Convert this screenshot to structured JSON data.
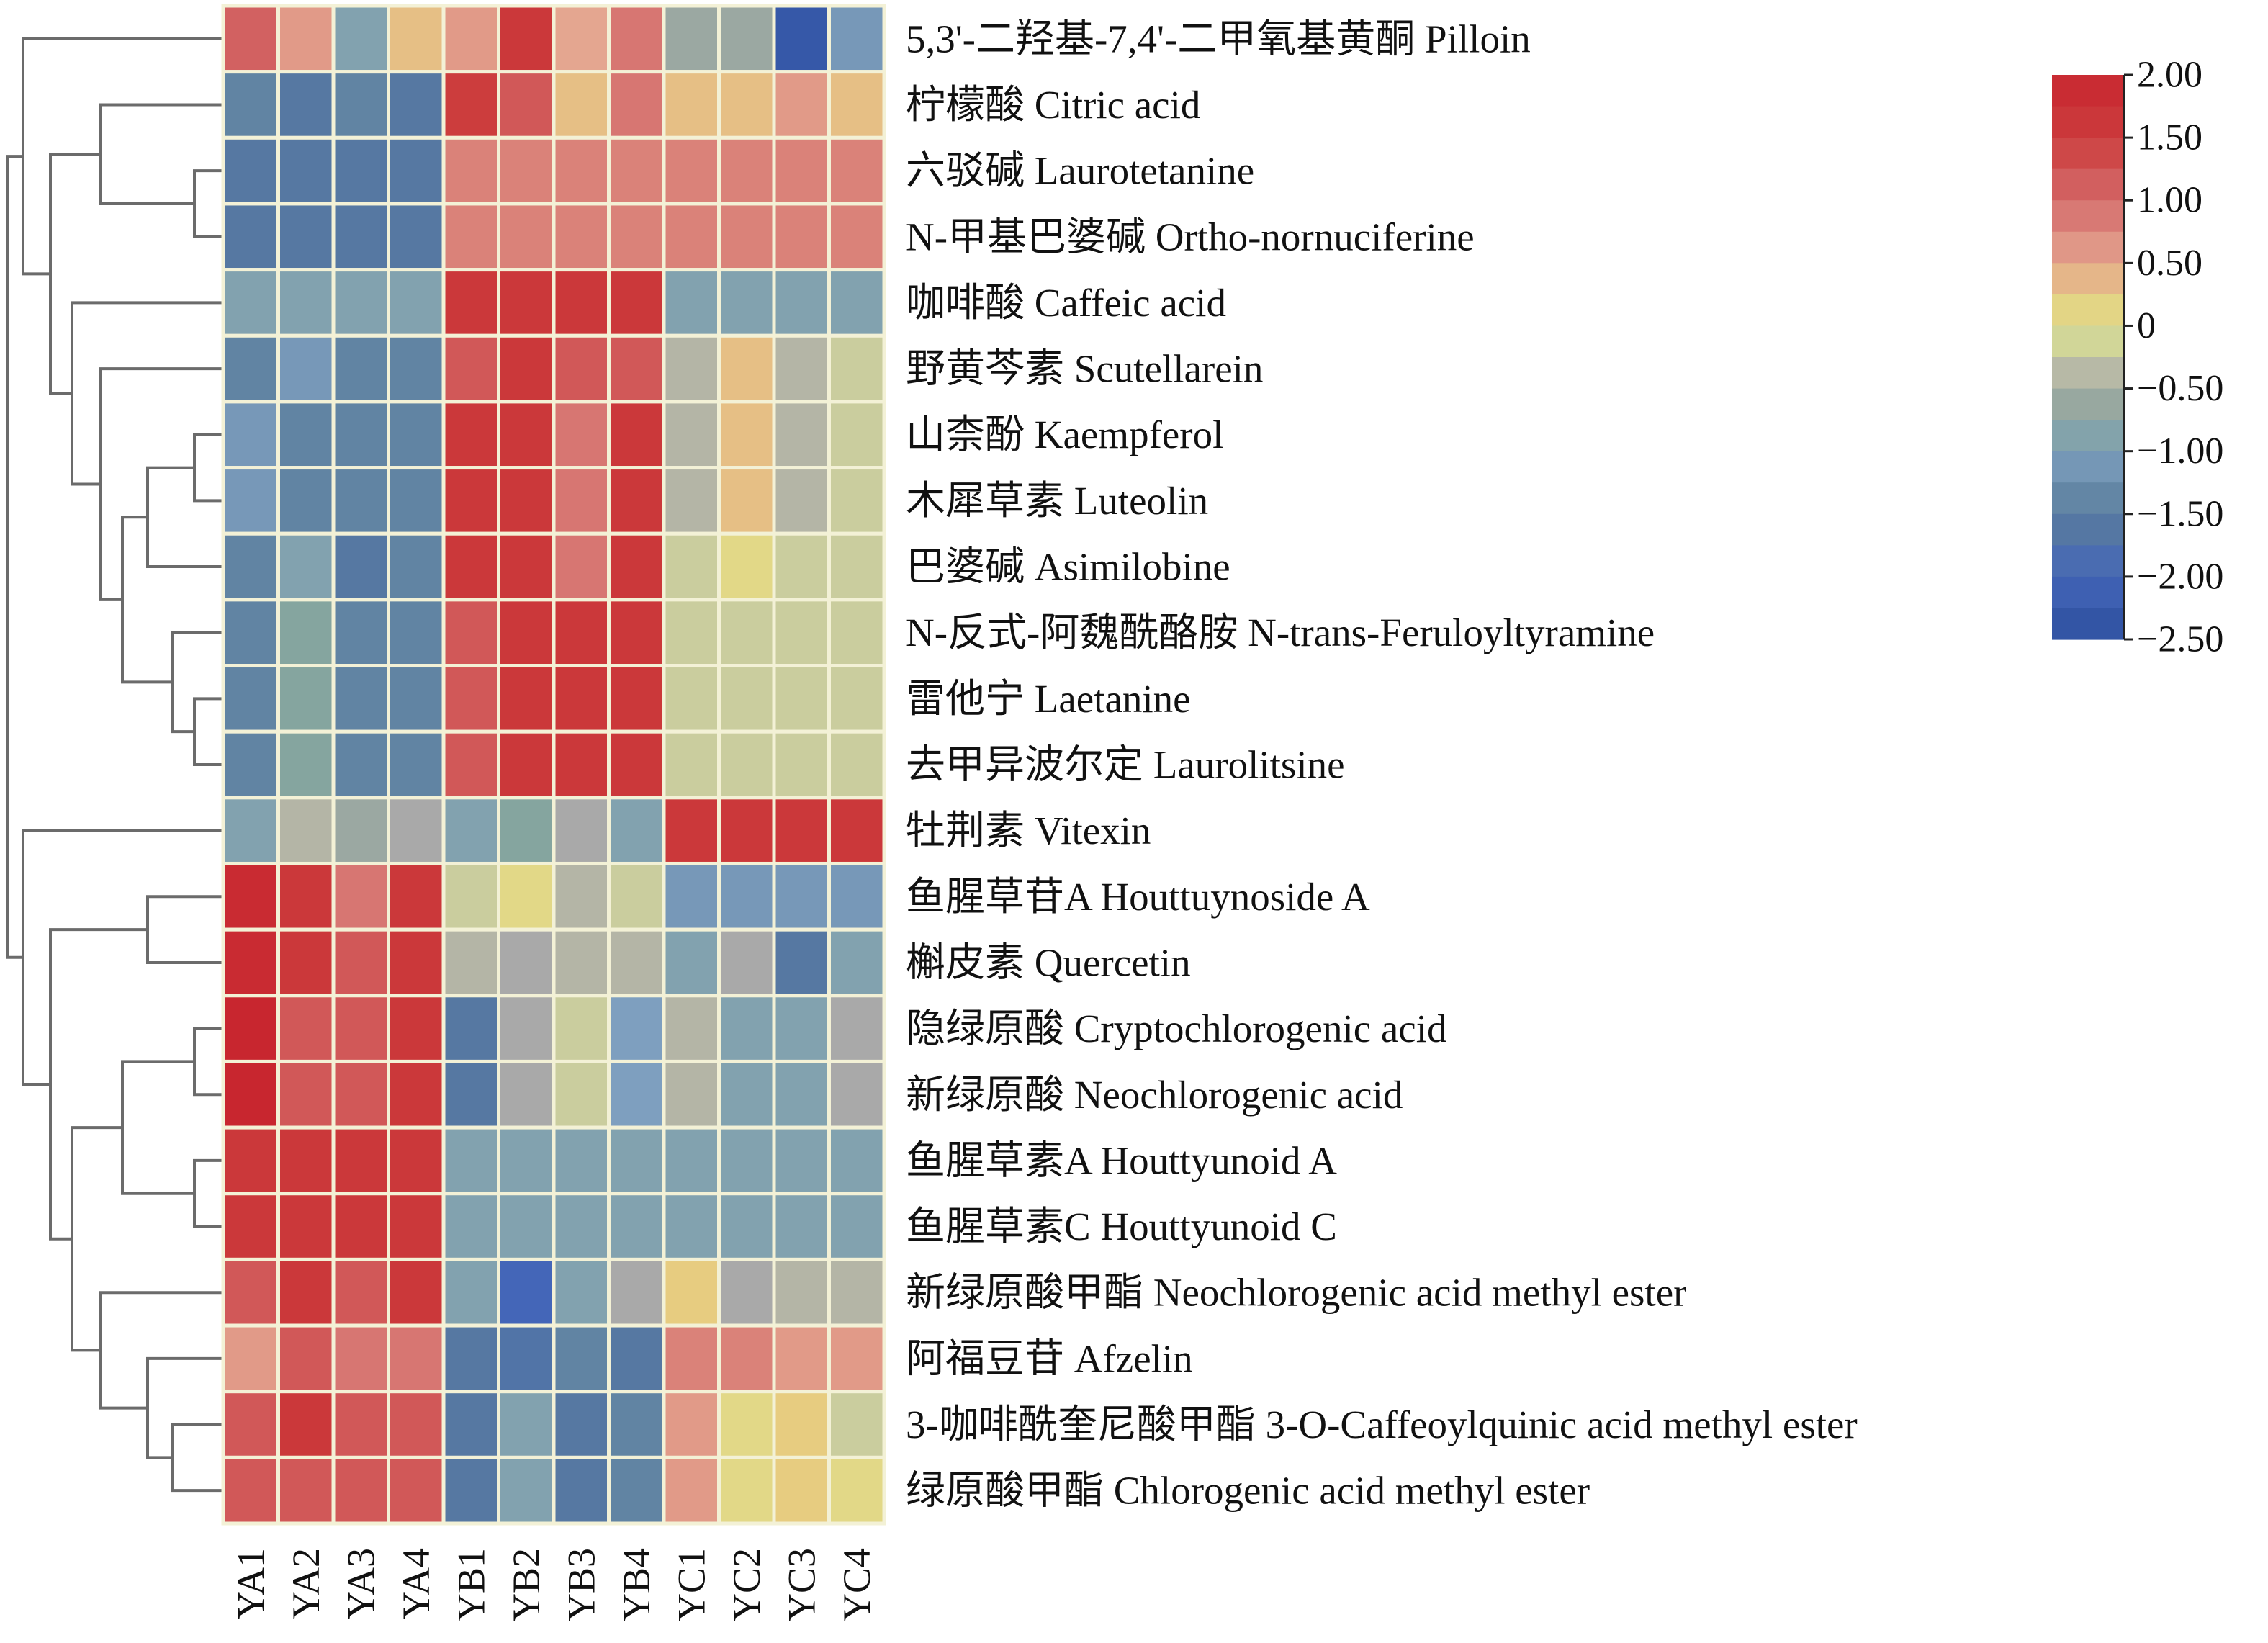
{
  "chart_data": {
    "type": "heatmap",
    "title": "",
    "xlabel": "",
    "ylabel": "",
    "columns": [
      "YA1",
      "YA2",
      "YA3",
      "YA4",
      "YB1",
      "YB2",
      "YB3",
      "YB4",
      "YC1",
      "YC2",
      "YC3",
      "YC4"
    ],
    "rows": [
      "5,3'-二羟基-7,4'-二甲氧基黄酮 Pilloin",
      "柠檬酸 Citric acid",
      "六驳碱 Laurotetanine",
      "N-甲基巴婆碱 Ortho-nornuciferine",
      "咖啡酸 Caffeic acid",
      "野黄芩素 Scutellarein",
      "山柰酚 Kaempferol",
      "木犀草素 Luteolin",
      "巴婆碱 Asimilobine",
      "N-反式-阿魏酰酪胺 N-trans-Feruloyltyramine",
      "雷他宁 Laetanine",
      "去甲异波尔定 Laurolitsine",
      "牡荆素 Vitexin",
      "鱼腥草苷A Houttuynoside A",
      "槲皮素 Quercetin",
      "隐绿原酸 Cryptochlorogenic acid",
      "新绿原酸 Neochlorogenic acid",
      "鱼腥草素A Houttyunoid A",
      "鱼腥草素C Houttyunoid C",
      "新绿原酸甲酯 Neochlorogenic acid methyl ester",
      "阿福豆苷 Afzelin",
      "3-咖啡酰奎尼酸甲酯 3-O-Caffeoylquinic acid methyl ester",
      "绿原酸甲酯 Chlorogenic acid methyl ester"
    ],
    "values": [
      [
        1.1,
        0.6,
        -0.9,
        0.3,
        0.6,
        1.6,
        0.5,
        0.9,
        -0.6,
        -0.6,
        -2.3,
        -1.1
      ],
      [
        -1.4,
        -1.6,
        -1.4,
        -1.6,
        1.5,
        1.2,
        0.3,
        0.9,
        0.3,
        0.3,
        0.6,
        0.3
      ],
      [
        -1.6,
        -1.6,
        -1.6,
        -1.6,
        0.8,
        0.8,
        0.8,
        0.8,
        0.8,
        0.8,
        0.8,
        0.8
      ],
      [
        -1.6,
        -1.6,
        -1.6,
        -1.6,
        0.8,
        0.8,
        0.8,
        0.8,
        0.8,
        0.8,
        0.8,
        0.8
      ],
      [
        -0.9,
        -0.9,
        -0.9,
        -0.9,
        1.6,
        1.6,
        1.6,
        1.6,
        -0.9,
        -0.9,
        -0.9,
        -0.9
      ],
      [
        -1.4,
        -1.1,
        -1.4,
        -1.4,
        1.2,
        1.6,
        1.2,
        1.2,
        -0.4,
        0.3,
        -0.4,
        -0.2
      ],
      [
        -1.1,
        -1.4,
        -1.4,
        -1.4,
        1.6,
        1.6,
        0.9,
        1.6,
        -0.4,
        0.3,
        -0.4,
        -0.2
      ],
      [
        -1.1,
        -1.4,
        -1.4,
        -1.4,
        1.6,
        1.6,
        0.9,
        1.6,
        -0.4,
        0.3,
        -0.4,
        -0.2
      ],
      [
        -1.4,
        -0.9,
        -1.6,
        -1.4,
        1.6,
        1.6,
        0.9,
        1.6,
        -0.2,
        0.1,
        -0.2,
        -0.2
      ],
      [
        -1.4,
        -0.8,
        -1.4,
        -1.4,
        1.2,
        1.6,
        1.6,
        1.6,
        -0.2,
        -0.2,
        -0.2,
        -0.2
      ],
      [
        -1.4,
        -0.8,
        -1.4,
        -1.4,
        1.2,
        1.6,
        1.6,
        1.6,
        -0.2,
        -0.2,
        -0.2,
        -0.2
      ],
      [
        -1.4,
        -0.8,
        -1.4,
        -1.4,
        1.2,
        1.6,
        1.6,
        1.6,
        -0.2,
        -0.2,
        -0.2,
        -0.2
      ],
      [
        -0.9,
        -0.4,
        -0.6,
        -0.5,
        -0.9,
        -0.8,
        -0.5,
        -0.9,
        1.6,
        1.6,
        1.6,
        1.6
      ],
      [
        1.9,
        1.6,
        0.9,
        1.6,
        -0.2,
        0.1,
        -0.4,
        -0.2,
        -1.1,
        -1.1,
        -1.1,
        -1.1
      ],
      [
        1.9,
        1.6,
        1.2,
        1.6,
        -0.4,
        -0.5,
        -0.4,
        -0.4,
        -0.9,
        -0.5,
        -1.6,
        -0.9
      ],
      [
        2.0,
        1.2,
        1.2,
        1.6,
        -1.6,
        -0.5,
        -0.2,
        -1.0,
        -0.4,
        -0.9,
        -0.9,
        -0.5
      ],
      [
        2.0,
        1.2,
        1.2,
        1.6,
        -1.6,
        -0.5,
        -0.2,
        -1.0,
        -0.4,
        -0.9,
        -0.9,
        -0.5
      ],
      [
        1.6,
        1.6,
        1.6,
        1.6,
        -0.9,
        -0.9,
        -0.9,
        -0.9,
        -0.9,
        -0.9,
        -0.9,
        -0.9
      ],
      [
        1.6,
        1.6,
        1.6,
        1.6,
        -0.9,
        -0.9,
        -0.9,
        -0.9,
        -0.9,
        -0.9,
        -0.9,
        -0.9
      ],
      [
        1.2,
        1.6,
        1.2,
        1.6,
        -0.9,
        -2.0,
        -0.9,
        -0.5,
        0.2,
        -0.5,
        -0.4,
        -0.4
      ],
      [
        0.6,
        1.2,
        0.9,
        0.9,
        -1.6,
        -1.7,
        -1.4,
        -1.6,
        0.8,
        0.8,
        0.6,
        0.6
      ],
      [
        1.2,
        1.6,
        1.2,
        1.2,
        -1.6,
        -0.9,
        -1.6,
        -1.4,
        0.6,
        0.1,
        0.2,
        -0.2
      ],
      [
        1.2,
        1.2,
        1.2,
        1.2,
        -1.6,
        -0.9,
        -1.6,
        -1.4,
        0.6,
        0.1,
        0.2,
        0.1
      ]
    ],
    "zlim": [
      -2.5,
      2.0
    ],
    "colorbar_ticks": [
      "2.00",
      "1.50",
      "1.00",
      "0.50",
      "0",
      "−0.50",
      "−1.00",
      "−1.50",
      "−2.00",
      "−2.50"
    ],
    "colorbar_tick_values": [
      2.0,
      1.5,
      1.0,
      0.5,
      0,
      -0.5,
      -1.0,
      -1.5,
      -2.0,
      -2.5
    ],
    "colorscale": [
      [
        -2.5,
        "#2d4f9e"
      ],
      [
        -2.0,
        "#4466b8"
      ],
      [
        -1.5,
        "#5a7d9c"
      ],
      [
        -1.0,
        "#7e9fbf"
      ],
      [
        -0.75,
        "#87a797"
      ],
      [
        -0.5,
        "#a9a9a9"
      ],
      [
        -0.25,
        "#c5c8a2"
      ],
      [
        0.0,
        "#dde38e"
      ],
      [
        0.2,
        "#e7cc80"
      ],
      [
        0.5,
        "#e4a690"
      ],
      [
        1.0,
        "#d46a6a"
      ],
      [
        1.5,
        "#cc3d3d"
      ],
      [
        2.0,
        "#c8262f"
      ]
    ],
    "row_dendrogram": true,
    "col_dendrogram": false,
    "legend": "colorbar-top-right",
    "grid": true
  }
}
